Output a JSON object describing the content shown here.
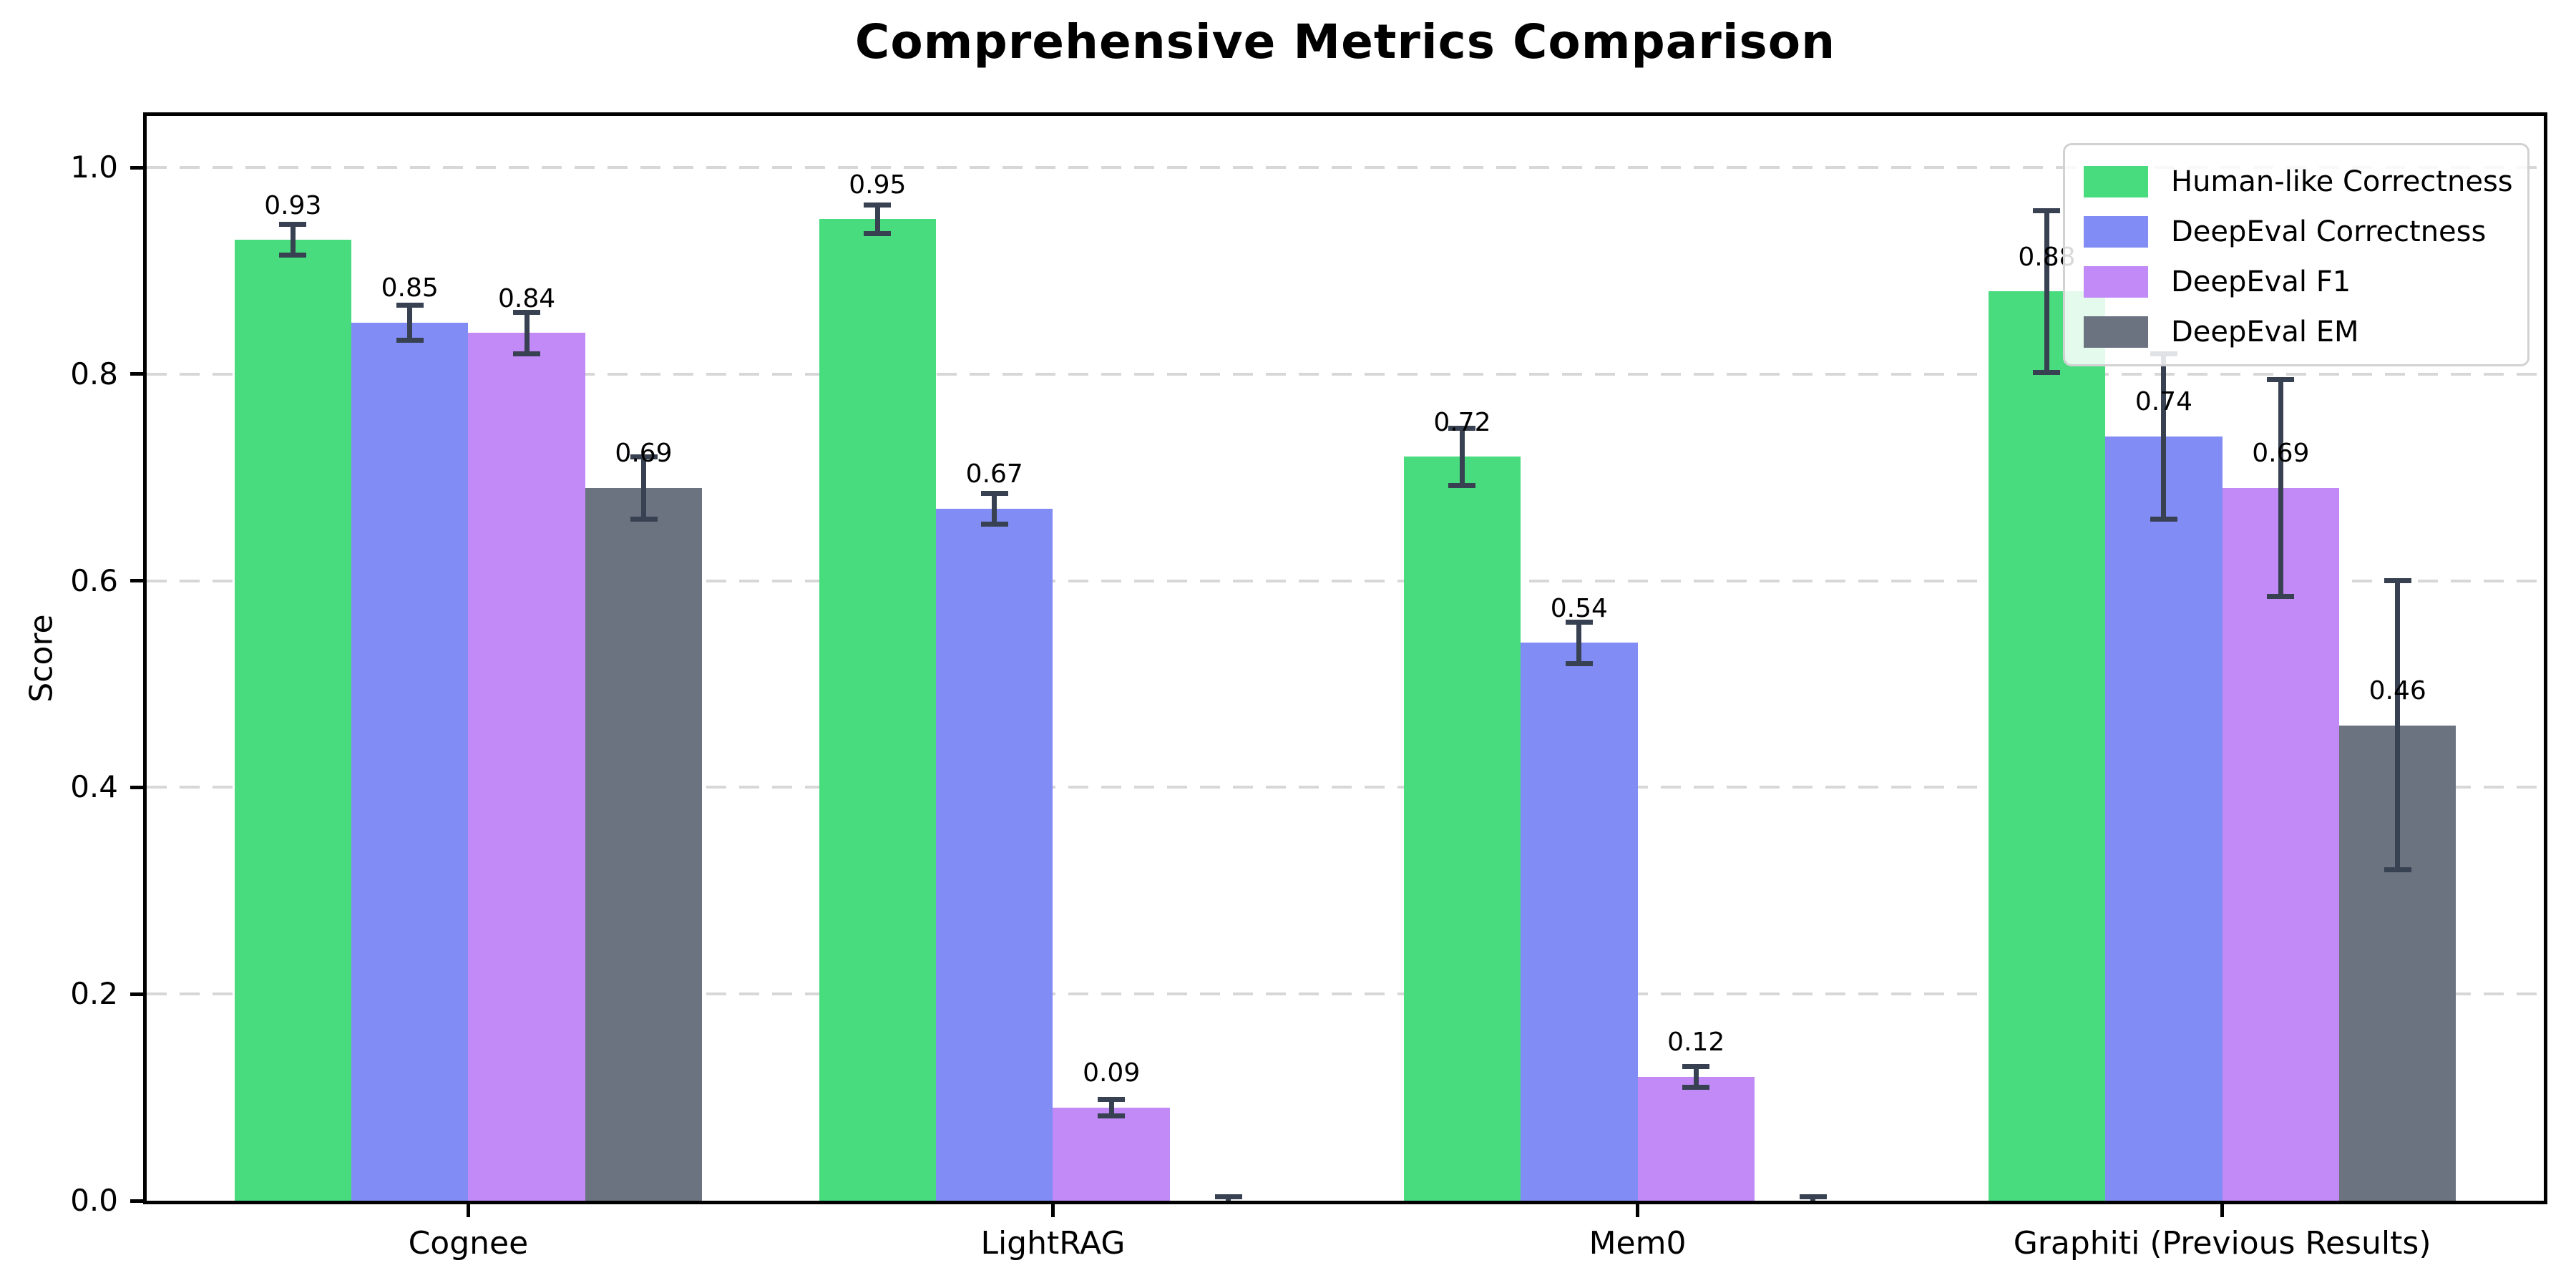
{
  "page": {
    "title": "Comprehensive Metrics Comparison"
  },
  "chart_data": {
    "type": "bar",
    "title": "Comprehensive Metrics Comparison",
    "xlabel": "",
    "ylabel": "Score",
    "categories": [
      "Cognee",
      "LightRAG",
      "Mem0",
      "Graphiti (Previous Results)"
    ],
    "series": [
      {
        "name": "Human-like Correctness",
        "color": "#48dc7e",
        "values": [
          0.93,
          0.95,
          0.72,
          0.88
        ],
        "errors": [
          0.015,
          0.014,
          0.028,
          0.078
        ],
        "labels": [
          "0.93",
          "0.95",
          "0.72",
          "0.88"
        ]
      },
      {
        "name": "DeepEval Correctness",
        "color": "#828cf5",
        "values": [
          0.85,
          0.67,
          0.54,
          0.74
        ],
        "errors": [
          0.017,
          0.015,
          0.02,
          0.08
        ],
        "labels": [
          "0.85",
          "0.67",
          "0.54",
          "0.74"
        ]
      },
      {
        "name": "DeepEval F1",
        "color": "#c18af7",
        "values": [
          0.84,
          0.09,
          0.12,
          0.69
        ],
        "errors": [
          0.02,
          0.008,
          0.01,
          0.105
        ],
        "labels": [
          "0.84",
          "0.09",
          "0.12",
          "0.69"
        ]
      },
      {
        "name": "DeepEval EM",
        "color": "#6c7380",
        "values": [
          0.69,
          0.0,
          0.0,
          0.46
        ],
        "errors": [
          0.03,
          0.004,
          0.004,
          0.14
        ],
        "labels": [
          "0.69",
          "",
          "",
          "0.46"
        ]
      }
    ],
    "ylim": [
      0,
      1.05
    ],
    "yticks": [
      0.0,
      0.2,
      0.4,
      0.6,
      0.8,
      1.0
    ],
    "ytick_labels": [
      "0.0",
      "0.2",
      "0.4",
      "0.6",
      "0.8",
      "1.0"
    ],
    "grid": "horizontal-dashed",
    "legend_position": "upper-right",
    "error_bar_color": "#374151",
    "bar_label_color": "#000000"
  }
}
